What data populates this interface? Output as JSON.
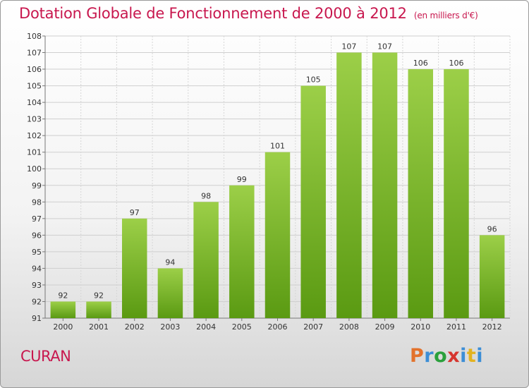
{
  "header": {
    "title": "Dotation Globale de Fonctionnement de 2000 à 2012",
    "subtitle": "(en milliers d'€)"
  },
  "footer": {
    "commune": "CURAN",
    "logo_text": "Proxiti"
  },
  "colors": {
    "title": "#c8174e",
    "bar_top": "#9ccf48",
    "bar_bottom": "#5a9a12",
    "logo": [
      "#e3722b",
      "#3c8ed6",
      "#2aa03c",
      "#d6352f",
      "#3c8ed6",
      "#e3b320",
      "#3c8ed6"
    ]
  },
  "chart_data": {
    "type": "bar",
    "categories": [
      "2000",
      "2001",
      "2002",
      "2003",
      "2004",
      "2005",
      "2006",
      "2007",
      "2008",
      "2009",
      "2010",
      "2011",
      "2012"
    ],
    "values": [
      92,
      92,
      97,
      94,
      98,
      99,
      101,
      105,
      107,
      107,
      106,
      106,
      96
    ],
    "title": "Dotation Globale de Fonctionnement de 2000 à 2012",
    "ylim": [
      91,
      108
    ],
    "yticks": [
      91,
      92,
      93,
      94,
      95,
      96,
      97,
      98,
      99,
      100,
      101,
      102,
      103,
      104,
      105,
      106,
      107,
      108
    ],
    "grid": true,
    "data_labels": true
  }
}
